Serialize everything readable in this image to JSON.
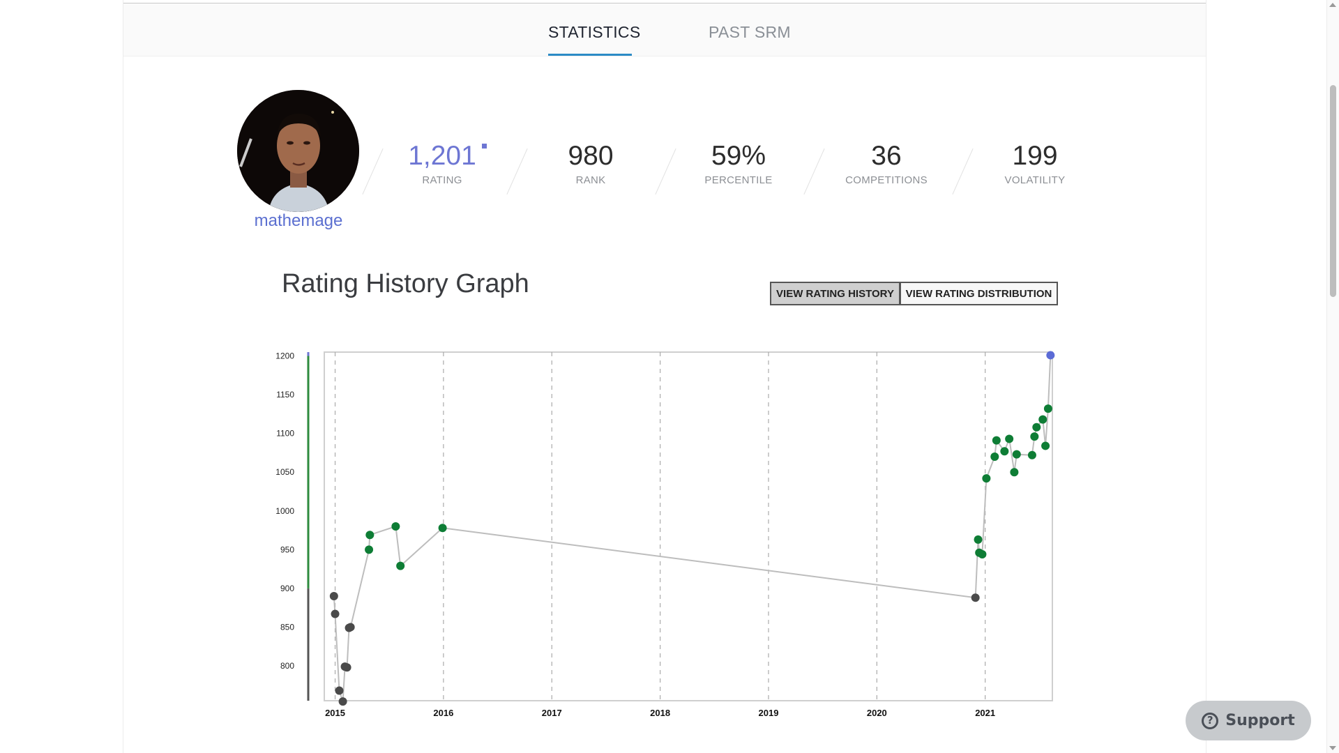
{
  "tabs": [
    {
      "label": "STATISTICS",
      "active": true
    },
    {
      "label": "PAST SRM",
      "active": false
    }
  ],
  "profile": {
    "handle": "mathemage",
    "handle_color": "#5b6fd0"
  },
  "stats": {
    "rating": {
      "value": "1,201",
      "label": "RATING"
    },
    "rank": {
      "value": "980",
      "label": "RANK"
    },
    "percentile": {
      "value": "59%",
      "label": "PERCENTILE"
    },
    "competitions": {
      "value": "36",
      "label": "COMPETITIONS"
    },
    "volatility": {
      "value": "199",
      "label": "VOLATILITY"
    }
  },
  "graph": {
    "title": "Rating History Graph",
    "buttons": {
      "history": "VIEW RATING HISTORY",
      "distribution": "VIEW RATING DISTRIBUTION"
    }
  },
  "support": {
    "label": "Support",
    "icon": "question-icon"
  },
  "colors": {
    "accent_blue": "#6d76d3",
    "tab_underline": "#2b8bc6",
    "green_point": "#0e7d35",
    "gray_point": "#4a4a4a",
    "blue_point": "#5b6bd6",
    "line": "#bdbdbd"
  },
  "chart_data": {
    "type": "line",
    "title": "",
    "xlabel": "",
    "ylabel": "",
    "ylim": [
      755,
      1205
    ],
    "xlim": [
      2014.9,
      2021.62
    ],
    "yticks": [
      1200,
      1150,
      1100,
      1050,
      1000,
      950,
      900,
      850,
      800
    ],
    "xticks": [
      "2015",
      "2016",
      "2017",
      "2018",
      "2019",
      "2020",
      "2021"
    ],
    "band_colors": [
      {
        "from": 755,
        "to": 900,
        "color": "#555555"
      },
      {
        "from": 900,
        "to": 1200,
        "color": "#2e8b3e"
      },
      {
        "from": 1200,
        "to": 1205,
        "color": "#6d76d3"
      }
    ],
    "grid": "vertical-dashed",
    "series": [
      {
        "values": [
          {
            "date": "2014-12-28",
            "rating": 890
          },
          {
            "date": "2015-01-01",
            "rating": 867
          },
          {
            "date": "2015-01-15",
            "rating": 768
          },
          {
            "date": "2015-01-27",
            "rating": 754
          },
          {
            "date": "2015-02-03",
            "rating": 799
          },
          {
            "date": "2015-02-10",
            "rating": 798
          },
          {
            "date": "2015-02-17",
            "rating": 849
          },
          {
            "date": "2015-02-22",
            "rating": 850
          },
          {
            "date": "2015-04-25",
            "rating": 950
          },
          {
            "date": "2015-04-28",
            "rating": 969
          },
          {
            "date": "2015-07-24",
            "rating": 980
          },
          {
            "date": "2015-08-09",
            "rating": 929
          },
          {
            "date": "2015-12-29",
            "rating": 978
          },
          {
            "date": "2020-11-29",
            "rating": 888
          },
          {
            "date": "2020-12-08",
            "rating": 963
          },
          {
            "date": "2020-12-12",
            "rating": 946
          },
          {
            "date": "2020-12-22",
            "rating": 944
          },
          {
            "date": "2021-01-05",
            "rating": 1042
          },
          {
            "date": "2021-02-02",
            "rating": 1070
          },
          {
            "date": "2021-02-08",
            "rating": 1091
          },
          {
            "date": "2021-03-07",
            "rating": 1077
          },
          {
            "date": "2021-03-23",
            "rating": 1093
          },
          {
            "date": "2021-04-09",
            "rating": 1050
          },
          {
            "date": "2021-04-17",
            "rating": 1073
          },
          {
            "date": "2021-06-08",
            "rating": 1072
          },
          {
            "date": "2021-06-16",
            "rating": 1096
          },
          {
            "date": "2021-06-23",
            "rating": 1108
          },
          {
            "date": "2021-07-14",
            "rating": 1118
          },
          {
            "date": "2021-07-23",
            "rating": 1084
          },
          {
            "date": "2021-08-01",
            "rating": 1132
          },
          {
            "date": "2021-08-09",
            "rating": 1201
          }
        ]
      }
    ]
  }
}
